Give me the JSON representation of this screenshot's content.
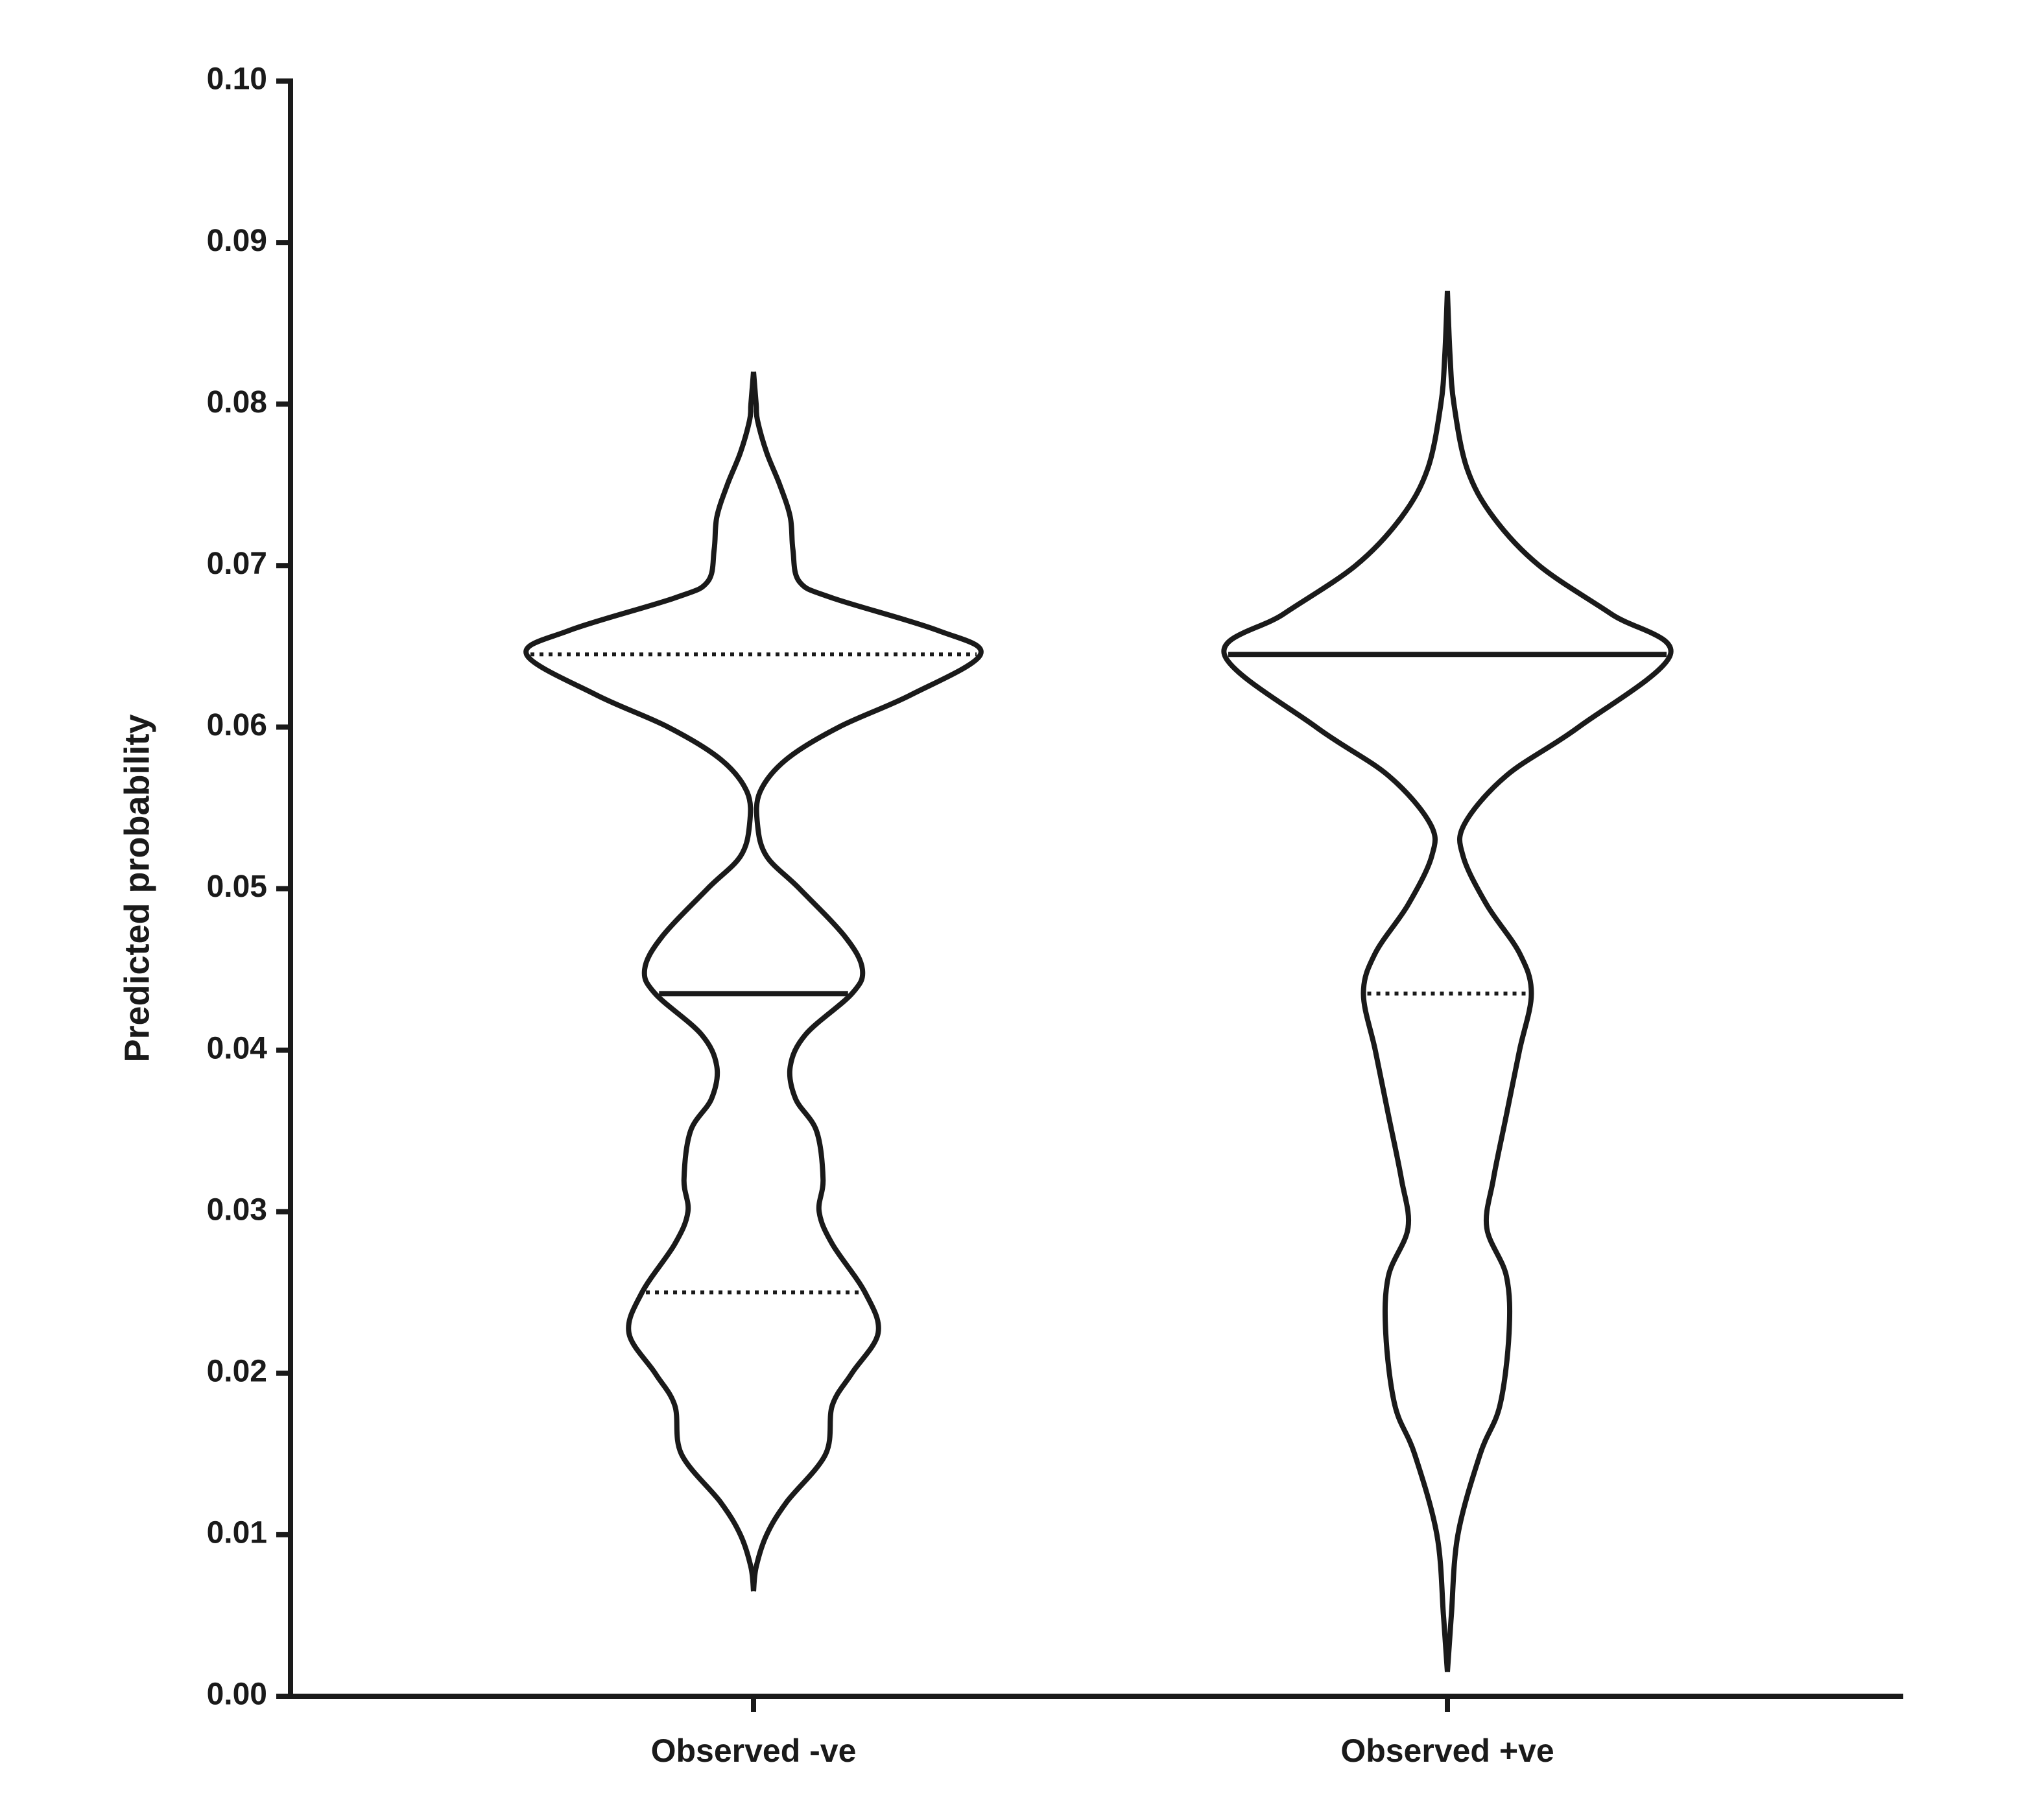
{
  "chart_data": {
    "type": "violin",
    "y_label": "Predicted probability",
    "ylim": [
      0,
      0.1
    ],
    "yticks": [
      {
        "value": 0,
        "label": "0.00"
      },
      0.01,
      0.02,
      0.03,
      0.04,
      0.05,
      0.06,
      0.07,
      0.08,
      0.09,
      {
        "value": 0.1,
        "label": "0.10"
      }
    ],
    "categories": [
      "Observed -ve",
      "Observed +ve"
    ],
    "color": "#1a1a1a",
    "violins": [
      {
        "y": [
          0.0065,
          0.008,
          0.01,
          0.012,
          0.015,
          0.018,
          0.02,
          0.0225,
          0.025,
          0.028,
          0.03,
          0.032,
          0.035,
          0.037,
          0.039,
          0.041,
          0.0435,
          0.045,
          0.047,
          0.05,
          0.052,
          0.054,
          0.056,
          0.058,
          0.06,
          0.062,
          0.0645,
          0.066,
          0.068,
          0.069,
          0.071,
          0.073,
          0.075,
          0.077,
          0.079,
          0.08,
          0.082
        ],
        "density": [
          0,
          2,
          10,
          25,
          55,
          60,
          75,
          95,
          85,
          60,
          50,
          53,
          48,
          32,
          28,
          40,
          75,
          83,
          70,
          35,
          10,
          3,
          5,
          25,
          65,
          120,
          173,
          140,
          60,
          35,
          30,
          28,
          20,
          10,
          3,
          2,
          0
        ],
        "median": 0.0435,
        "q1": 0.025,
        "q3": 0.0645
      },
      {
        "y": [
          0.0015,
          0.005,
          0.01,
          0.015,
          0.018,
          0.0225,
          0.026,
          0.029,
          0.032,
          0.036,
          0.04,
          0.0435,
          0.046,
          0.049,
          0.052,
          0.054,
          0.057,
          0.06,
          0.0645,
          0.067,
          0.07,
          0.073,
          0.076,
          0.08,
          0.083,
          0.087
        ],
        "density": [
          0,
          3,
          8,
          25,
          40,
          47,
          45,
          30,
          35,
          45,
          55,
          64,
          55,
          30,
          12,
          13,
          45,
          100,
          170,
          125,
          70,
          35,
          15,
          5,
          2,
          0
        ],
        "median": 0.0645,
        "q1": 0.0435,
        "q3": 0.0645
      }
    ]
  }
}
